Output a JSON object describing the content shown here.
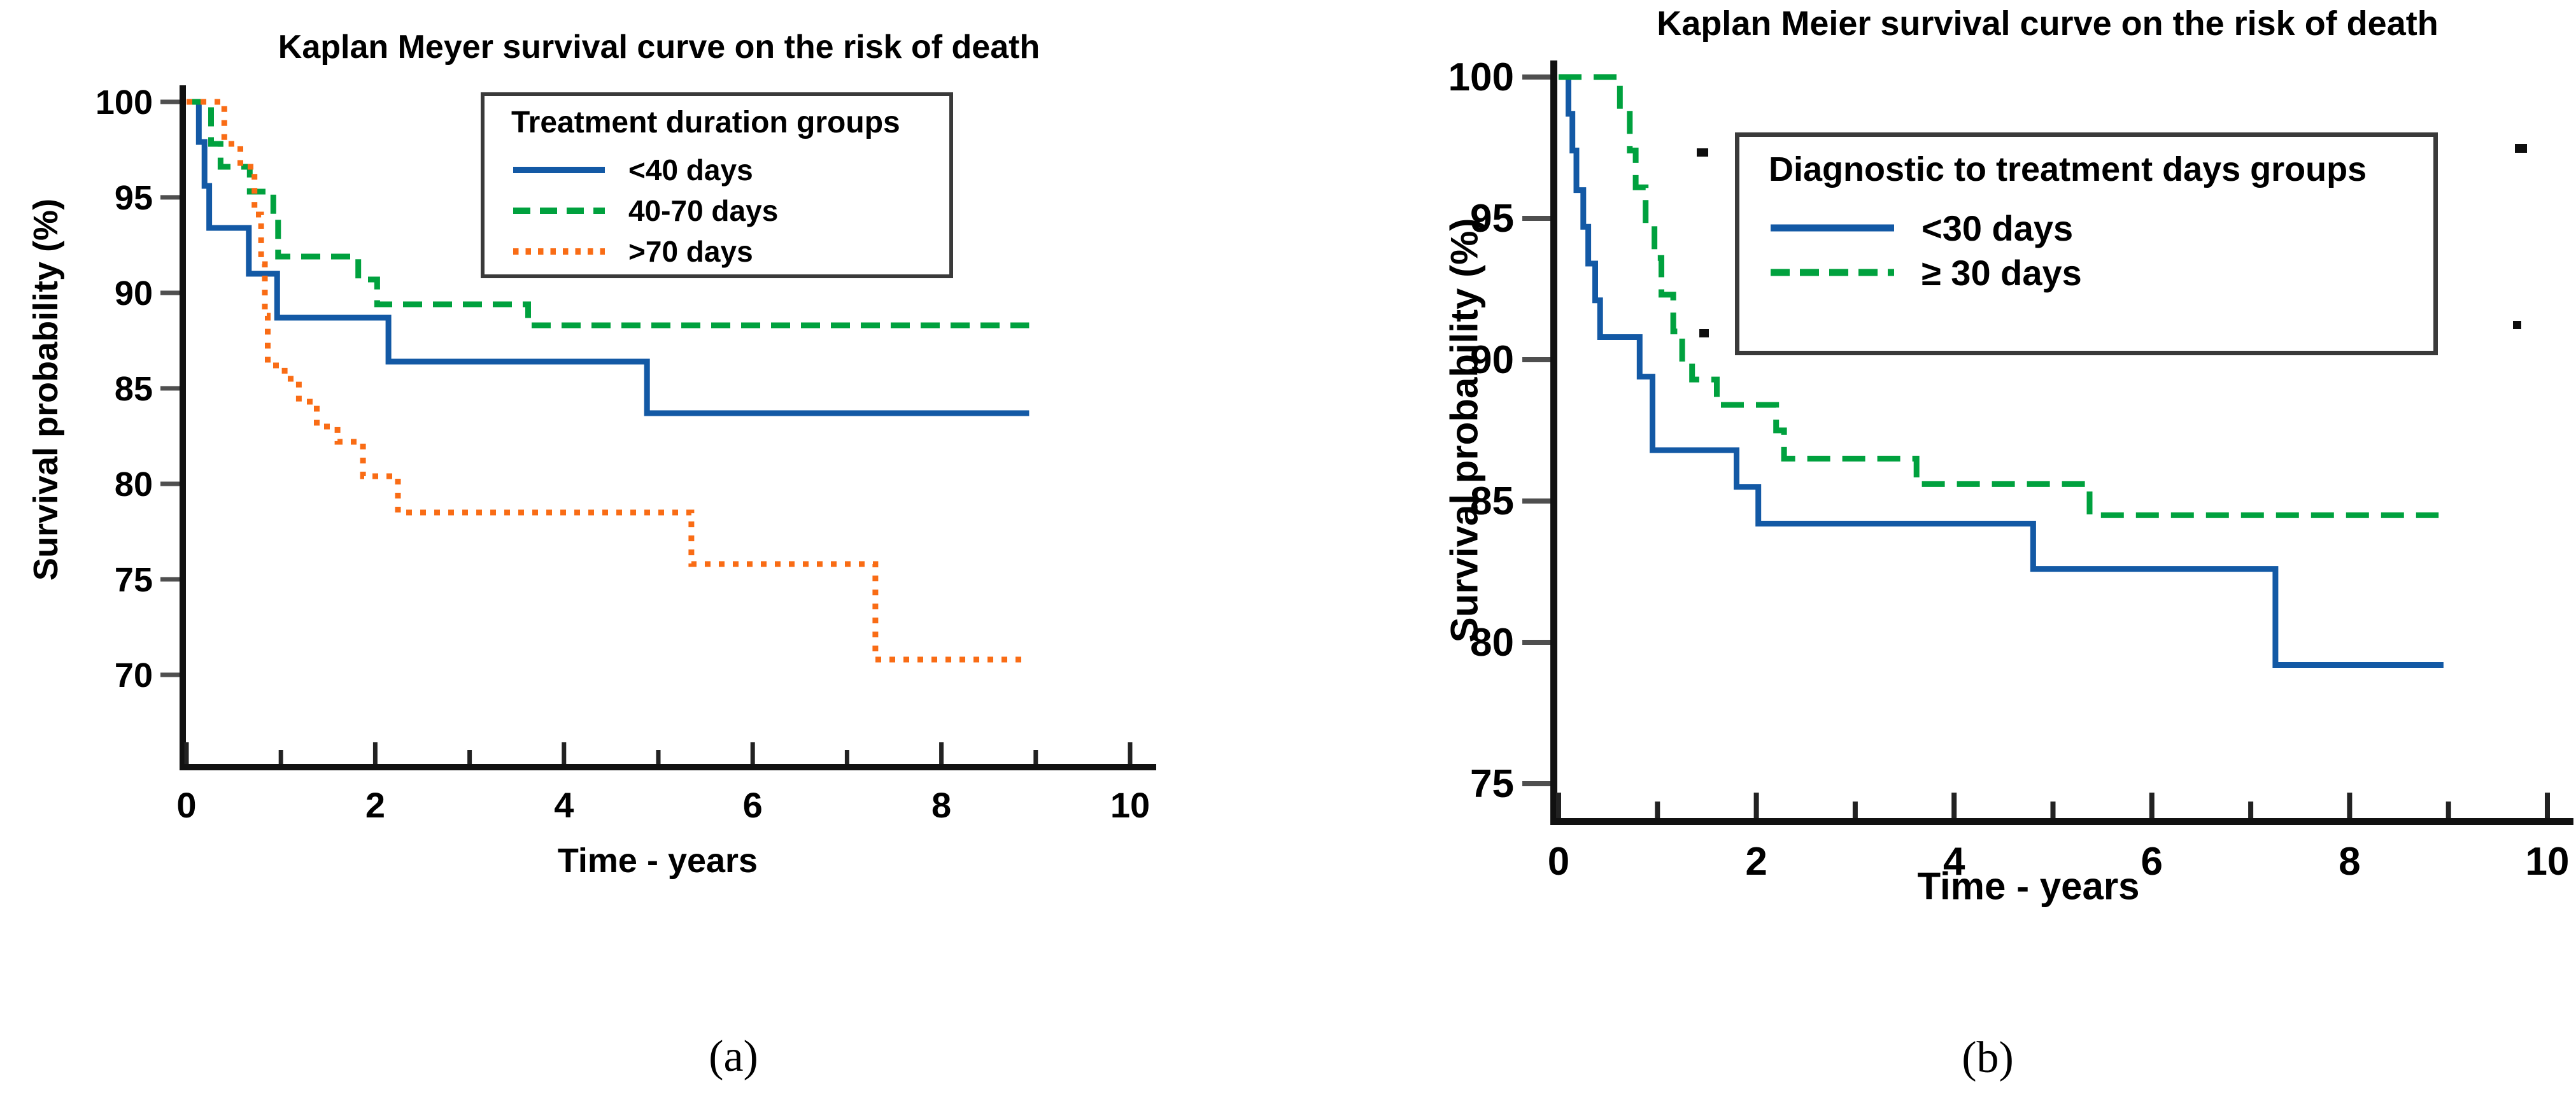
{
  "figure": {
    "captions": {
      "a": "(a)",
      "b": "(b)"
    }
  },
  "chart_data": [
    {
      "id": "a",
      "type": "line",
      "subtype": "kaplan-meier-step",
      "title": "Kaplan Meyer survival curve on the risk of death",
      "xlabel": "Time - years",
      "ylabel": "Survival probability (%)",
      "xlim": [
        0,
        10.3
      ],
      "ylim": [
        70,
        100
      ],
      "xticks": [
        0,
        2,
        4,
        6,
        8,
        10
      ],
      "minor_xticks": [
        1,
        3,
        5,
        7,
        9
      ],
      "yticks": [
        100,
        95,
        90,
        85,
        80,
        75,
        70
      ],
      "grid": false,
      "legend": {
        "title": "Treatment duration groups",
        "position": "upper right inside"
      },
      "series": [
        {
          "name": "<40 days",
          "color": "#1359a5",
          "style": "solid",
          "points": [
            [
              0,
              100
            ],
            [
              0.13,
              97.9
            ],
            [
              0.19,
              95.6
            ],
            [
              0.24,
              93.4
            ],
            [
              0.66,
              91.0
            ],
            [
              0.96,
              88.7
            ],
            [
              2.14,
              86.4
            ],
            [
              4.88,
              83.7
            ],
            [
              8.93,
              83.7
            ]
          ]
        },
        {
          "name": "40-70 days",
          "color": "#00a13e",
          "style": "dashed",
          "points": [
            [
              0,
              100
            ],
            [
              0.26,
              97.8
            ],
            [
              0.36,
              96.6
            ],
            [
              0.67,
              95.3
            ],
            [
              0.92,
              94.1
            ],
            [
              0.97,
              91.9
            ],
            [
              1.82,
              90.7
            ],
            [
              2.02,
              89.4
            ],
            [
              3.62,
              88.3
            ],
            [
              8.93,
              88.3
            ]
          ]
        },
        {
          "name": ">70 days",
          "color": "#f96c15",
          "style": "dotted",
          "points": [
            [
              0,
              100
            ],
            [
              0.4,
              97.8
            ],
            [
              0.57,
              96.6
            ],
            [
              0.72,
              94.1
            ],
            [
              0.79,
              91.5
            ],
            [
              0.83,
              88.8
            ],
            [
              0.86,
              86.2
            ],
            [
              1.04,
              85.5
            ],
            [
              1.19,
              84.3
            ],
            [
              1.38,
              83.0
            ],
            [
              1.6,
              82.2
            ],
            [
              1.87,
              80.4
            ],
            [
              2.24,
              78.5
            ],
            [
              5.35,
              75.8
            ],
            [
              7.3,
              70.8
            ],
            [
              8.93,
              70.8
            ]
          ]
        }
      ]
    },
    {
      "id": "b",
      "type": "line",
      "subtype": "kaplan-meier-step",
      "title": "Kaplan Meier survival curve on the risk of death",
      "xlabel": "Time - years",
      "ylabel": "Survival probability (%)",
      "xlim": [
        0,
        10.3
      ],
      "ylim": [
        75,
        100
      ],
      "xticks": [
        0,
        2,
        4,
        6,
        8,
        10
      ],
      "minor_xticks": [
        1,
        3,
        5,
        7,
        9
      ],
      "yticks": [
        100,
        95,
        90,
        85,
        80,
        75
      ],
      "grid": false,
      "legend": {
        "title": "Diagnostic to treatment days groups",
        "position": "upper right inside"
      },
      "series": [
        {
          "name": "<30 days",
          "color": "#1359a5",
          "style": "solid",
          "points": [
            [
              0,
              100
            ],
            [
              0.1,
              98.7
            ],
            [
              0.14,
              97.4
            ],
            [
              0.18,
              96.0
            ],
            [
              0.25,
              94.7
            ],
            [
              0.3,
              93.4
            ],
            [
              0.37,
              92.1
            ],
            [
              0.42,
              90.8
            ],
            [
              0.82,
              89.4
            ],
            [
              0.95,
              86.8
            ],
            [
              1.8,
              85.5
            ],
            [
              2.02,
              84.2
            ],
            [
              4.8,
              82.6
            ],
            [
              7.25,
              79.2
            ],
            [
              8.95,
              79.2
            ]
          ]
        },
        {
          "name": "≥ 30 days",
          "color": "#00a13e",
          "style": "dashed",
          "points": [
            [
              0,
              100
            ],
            [
              0.62,
              98.7
            ],
            [
              0.72,
              97.4
            ],
            [
              0.78,
              96.1
            ],
            [
              0.88,
              94.8
            ],
            [
              0.97,
              93.6
            ],
            [
              1.04,
              92.3
            ],
            [
              1.16,
              91.0
            ],
            [
              1.25,
              89.9
            ],
            [
              1.35,
              89.3
            ],
            [
              1.6,
              88.4
            ],
            [
              2.2,
              87.5
            ],
            [
              2.28,
              86.5
            ],
            [
              3.62,
              85.6
            ],
            [
              5.37,
              84.5
            ],
            [
              8.9,
              84.5
            ]
          ]
        }
      ]
    }
  ]
}
